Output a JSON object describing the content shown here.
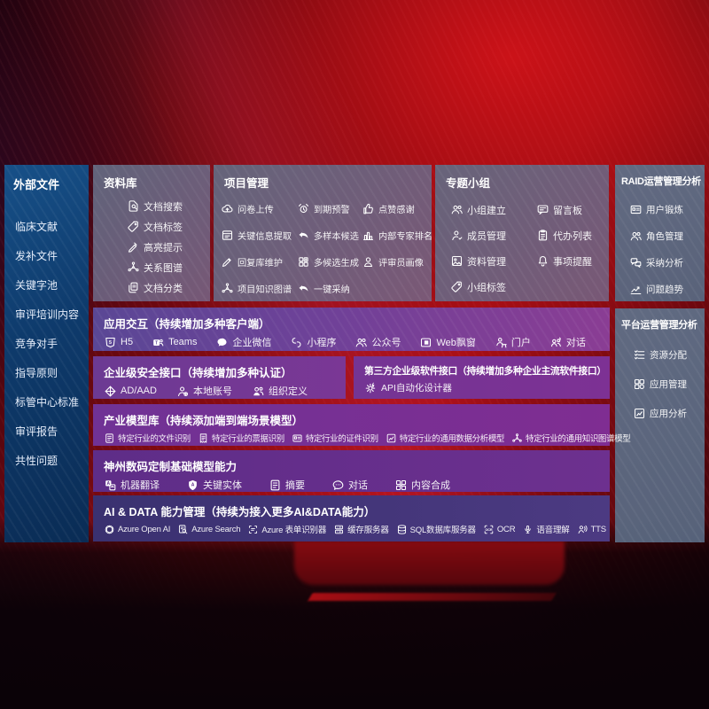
{
  "colors": {
    "background_red": "#a90f15",
    "sidebar_blue": "#0e3a6b",
    "panel_slate": "#6b6980",
    "row_purple": "#7b3f97",
    "row_indigo": "#433678"
  },
  "left_sidebar": {
    "title": "外部文件",
    "items": [
      "临床文献",
      "发补文件",
      "关键字池",
      "审评培训内容",
      "竞争对手",
      "指导原则",
      "标管中心标准",
      "审评报告",
      "共性问题"
    ]
  },
  "top_panels": [
    {
      "title": "资料库",
      "items": [
        {
          "icon": "doc-search",
          "label": "文档搜索"
        },
        {
          "icon": "tag",
          "label": "文档标签"
        },
        {
          "icon": "highlighter",
          "label": "高亮提示"
        },
        {
          "icon": "knowledge-graph",
          "label": "关系图谱"
        },
        {
          "icon": "doc-copy",
          "label": "文档分类"
        }
      ]
    },
    {
      "title": "项目管理",
      "items": [
        {
          "icon": "cloud-upload",
          "label": "问卷上传"
        },
        {
          "icon": "alarm",
          "label": "到期预警"
        },
        {
          "icon": "thumbs-up",
          "label": "点赞感谢"
        },
        {
          "icon": "info-extract",
          "label": "关键信息提取"
        },
        {
          "icon": "reply-arrow",
          "label": "多样本候选"
        },
        {
          "icon": "ranking",
          "label": "内部专家排名"
        },
        {
          "icon": "pen-edit",
          "label": "回复库维护"
        },
        {
          "icon": "multi-grid",
          "label": "多候选生成"
        },
        {
          "icon": "person",
          "label": "评审员画像"
        },
        {
          "icon": "knowledge-graph",
          "label": "项目知识图谱"
        },
        {
          "icon": "reply-arrow",
          "label": "一键采纳"
        }
      ]
    },
    {
      "title": "专题小组",
      "items": [
        {
          "icon": "people-group",
          "label": "小组建立"
        },
        {
          "icon": "bbs-board",
          "label": "留言板"
        },
        {
          "icon": "member",
          "label": "成员管理"
        },
        {
          "icon": "todo-clipboard",
          "label": "代办列表"
        },
        {
          "icon": "photo-album",
          "label": "资料管理"
        },
        {
          "icon": "bell",
          "label": "事项提醒"
        },
        {
          "icon": "tag",
          "label": "小组标签"
        }
      ]
    }
  ],
  "right_panels": [
    {
      "title": "RAID运营管理分析",
      "items": [
        {
          "icon": "id-card",
          "label": "用户锻炼"
        },
        {
          "icon": "people-group",
          "label": "角色管理"
        },
        {
          "icon": "qa-chat",
          "label": "采纳分析"
        },
        {
          "icon": "trend-chart",
          "label": "问题趋势"
        }
      ]
    },
    {
      "title": "平台运营管理分析",
      "items": [
        {
          "icon": "allocation-list",
          "label": "资源分配"
        },
        {
          "icon": "app-grid",
          "label": "应用管理"
        },
        {
          "icon": "app-chart",
          "label": "应用分析"
        }
      ]
    }
  ],
  "rows": [
    {
      "title": "应用交互（持续增加多种客户端）",
      "items": [
        {
          "icon": "h5",
          "label": "H5"
        },
        {
          "icon": "teams",
          "label": "Teams"
        },
        {
          "icon": "wechat-work",
          "label": "企业微信"
        },
        {
          "icon": "mini-program",
          "label": "小程序"
        },
        {
          "icon": "people-group",
          "label": "公众号"
        },
        {
          "icon": "web-window",
          "label": "Web飘窗"
        },
        {
          "icon": "portal-user",
          "label": "门户"
        },
        {
          "icon": "dialog-people",
          "label": "对话"
        }
      ]
    },
    {
      "title": "企业级安全接口（持续增加多种认证）",
      "items": [
        {
          "icon": "ad-aad",
          "label": "AD/AAD"
        },
        {
          "icon": "local-account",
          "label": "本地账号"
        },
        {
          "icon": "org-define",
          "label": "组织定义"
        }
      ]
    },
    {
      "title": "第三方企业级软件接口（持续增加多种企业主流软件接口）",
      "items": [
        {
          "icon": "api-gear",
          "label": "API自动化设计器"
        }
      ]
    },
    {
      "title": "产业模型库（持续添加端到端场景模型）",
      "items": [
        {
          "icon": "doc-file",
          "label": "特定行业的文件识别"
        },
        {
          "icon": "receipt",
          "label": "特定行业的票据识别"
        },
        {
          "icon": "id-card",
          "label": "特定行业的证件识别"
        },
        {
          "icon": "data-image",
          "label": "特定行业的通用数据分析模型"
        },
        {
          "icon": "knowledge-graph",
          "label": "特定行业的通用知识图谱模型"
        }
      ]
    },
    {
      "title": "神州数码定制基础模型能力",
      "items": [
        {
          "icon": "translate",
          "label": "机器翻译"
        },
        {
          "icon": "entity-shield",
          "label": "关键实体"
        },
        {
          "icon": "summary-doc",
          "label": "摘要"
        },
        {
          "icon": "chat-bubble",
          "label": "对话"
        },
        {
          "icon": "compose-grid",
          "label": "内容合成"
        }
      ]
    },
    {
      "title": "AI & DATA 能力管理（持续为接入更多AI&DATA能力）",
      "items": [
        {
          "icon": "openai",
          "label": "Azure Open AI"
        },
        {
          "icon": "azure-search",
          "label": "Azure Search"
        },
        {
          "icon": "form-recognizer",
          "label": "Azure 表单识别器"
        },
        {
          "icon": "cache-server",
          "label": "缓存服务器"
        },
        {
          "icon": "sql-database",
          "label": "SQL数据库服务器"
        },
        {
          "icon": "ocr",
          "label": "OCR"
        },
        {
          "icon": "speech",
          "label": "语音理解"
        },
        {
          "icon": "tts",
          "label": "TTS"
        }
      ]
    }
  ]
}
